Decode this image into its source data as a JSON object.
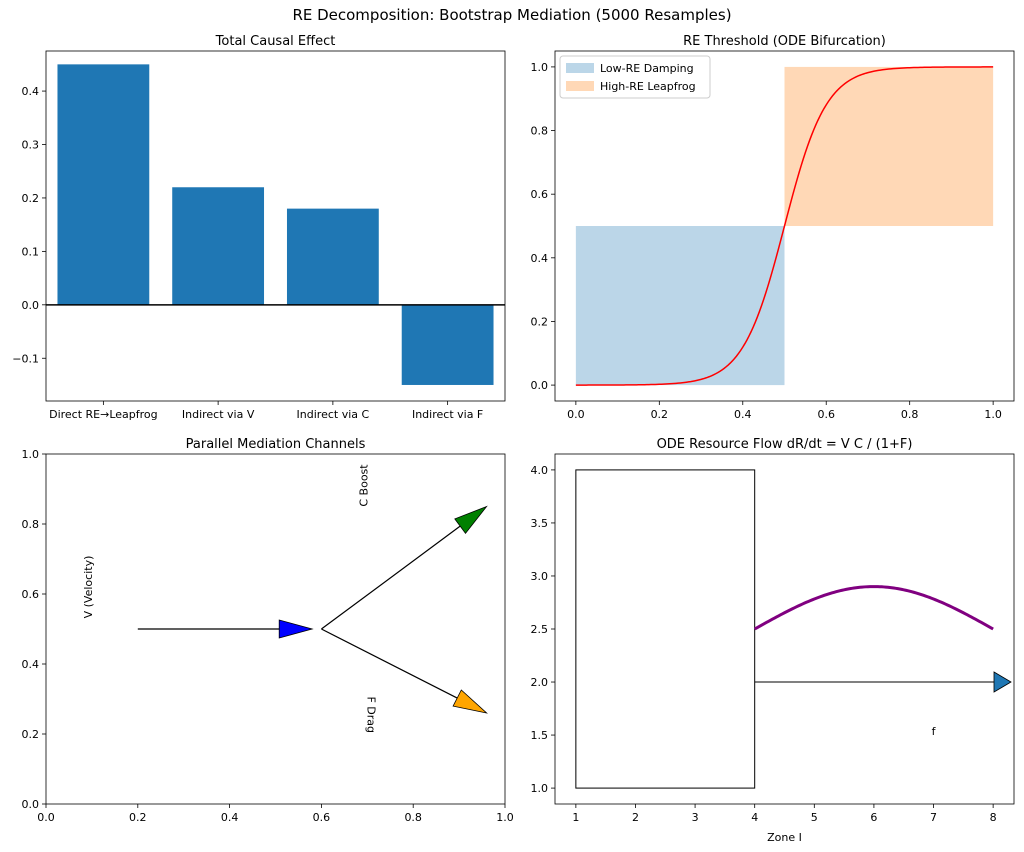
{
  "figure": {
    "title": "RE Decomposition: Bootstrap Mediation (5000 Resamples)"
  },
  "chart_data": [
    {
      "type": "bar",
      "title": "Total Causal Effect",
      "categories": [
        "Direct RE→Leapfrog",
        "Indirect via V",
        "Indirect via C",
        "Indirect via F"
      ],
      "values": [
        0.45,
        0.22,
        0.18,
        -0.15
      ],
      "ylim": [
        -0.18,
        0.475
      ],
      "yticks": [
        -0.1,
        0.0,
        0.1,
        0.2,
        0.3,
        0.4
      ],
      "ytick_labels": [
        "−0.1",
        "0.0",
        "0.1",
        "0.2",
        "0.3",
        "0.4"
      ],
      "hline": 0,
      "colors": {
        "bar": "#1f77b4",
        "hline": "#000000"
      }
    },
    {
      "type": "line",
      "title": "RE Threshold (ODE Bifurcation)",
      "xlim": [
        -0.05,
        1.05
      ],
      "ylim": [
        -0.05,
        1.05
      ],
      "xticks": [
        0.0,
        0.2,
        0.4,
        0.6,
        0.8,
        1.0
      ],
      "xtick_labels": [
        "0.0",
        "0.2",
        "0.4",
        "0.6",
        "0.8",
        "1.0"
      ],
      "yticks": [
        0.0,
        0.2,
        0.4,
        0.6,
        0.8,
        1.0
      ],
      "ytick_labels": [
        "0.0",
        "0.2",
        "0.4",
        "0.6",
        "0.8",
        "1.0"
      ],
      "curve": {
        "function": "logistic",
        "center": 0.5,
        "steepness": 20,
        "x_range": [
          0,
          1
        ],
        "color": "#ff0000"
      },
      "regions": [
        {
          "name": "Low-RE Damping",
          "x": [
            0,
            0.5
          ],
          "y": [
            0,
            0.5
          ],
          "color": "#1f77b4",
          "alpha": 0.3
        },
        {
          "name": "High-RE Leapfrog",
          "x": [
            0.5,
            1.0
          ],
          "y": [
            0.5,
            1.0
          ],
          "color": "#ff7f0e",
          "alpha": 0.3
        }
      ],
      "legend": "upper-left"
    },
    {
      "type": "diagram",
      "title": "Parallel Mediation Channels",
      "xlim": [
        0,
        1
      ],
      "ylim": [
        0,
        1
      ],
      "xticks": [
        0.0,
        0.2,
        0.4,
        0.6,
        0.8,
        1.0
      ],
      "xtick_labels": [
        "0.0",
        "0.2",
        "0.4",
        "0.6",
        "0.8",
        "1.0"
      ],
      "yticks": [
        0.0,
        0.2,
        0.4,
        0.6,
        0.8,
        1.0
      ],
      "ytick_labels": [
        "0.0",
        "0.2",
        "0.4",
        "0.6",
        "0.8",
        "1.0"
      ],
      "arrows": [
        {
          "name": "velocity",
          "from": [
            0.2,
            0.5
          ],
          "to": [
            0.58,
            0.5
          ],
          "head_color": "#0000ff"
        },
        {
          "name": "c-boost",
          "from": [
            0.6,
            0.5
          ],
          "to": [
            0.96,
            0.85
          ],
          "head_color": "#008000"
        },
        {
          "name": "f-drag",
          "from": [
            0.6,
            0.5
          ],
          "to": [
            0.96,
            0.26
          ],
          "head_color": "#ffa500"
        }
      ],
      "labels": [
        {
          "text": "V (Velocity)",
          "x": 0.1,
          "y": 0.62,
          "rotation": 90
        },
        {
          "text": "C Boost",
          "x": 0.7,
          "y": 0.91,
          "rotation": 90
        },
        {
          "text": "F Drag",
          "x": 0.7,
          "y": 0.255,
          "rotation": -90
        }
      ]
    },
    {
      "type": "diagram",
      "title": "ODE Resource Flow dR/dt = V C / (1+F)",
      "xlabel": "Zone I",
      "xlim": [
        0.65,
        8.35
      ],
      "ylim": [
        0.85,
        4.15
      ],
      "xticks": [
        1,
        2,
        3,
        4,
        5,
        6,
        7,
        8
      ],
      "xtick_labels": [
        "1",
        "2",
        "3",
        "4",
        "5",
        "6",
        "7",
        "8"
      ],
      "yticks": [
        1.0,
        1.5,
        2.0,
        2.5,
        3.0,
        3.5,
        4.0
      ],
      "ytick_labels": [
        "1.0",
        "1.5",
        "2.0",
        "2.5",
        "3.0",
        "3.5",
        "4.0"
      ],
      "rect": {
        "x": [
          1,
          4
        ],
        "y": [
          1,
          4
        ]
      },
      "curve": {
        "x_range": [
          4,
          8
        ],
        "peak_x": 6,
        "peak_y": 2.9,
        "end_y": 2.5,
        "color": "#800080"
      },
      "arrow": {
        "from": [
          4,
          2
        ],
        "to": [
          8.3,
          2
        ],
        "head_color": "#1f77b4"
      },
      "labels": [
        {
          "text": "f",
          "x": 7,
          "y": 1.5
        }
      ]
    }
  ]
}
